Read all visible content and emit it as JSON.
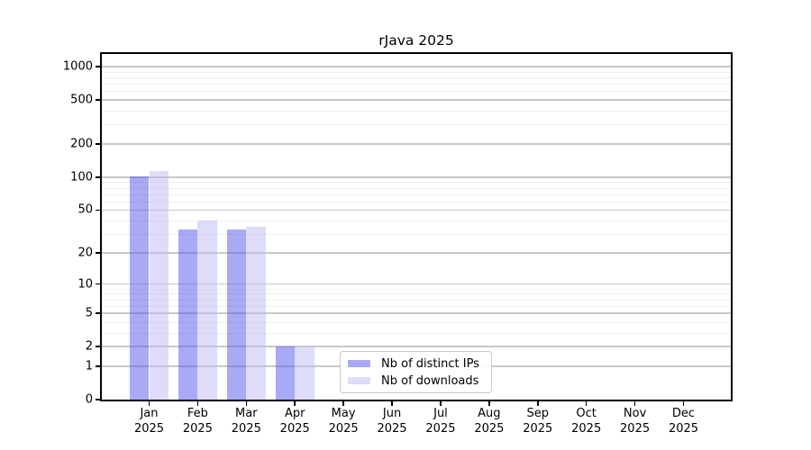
{
  "chart_data": {
    "type": "bar",
    "title": "rJava 2025",
    "categories": [
      "Jan",
      "Feb",
      "Mar",
      "Apr",
      "May",
      "Jun",
      "Jul",
      "Aug",
      "Sep",
      "Oct",
      "Nov",
      "Dec"
    ],
    "x_year": "2025",
    "series": [
      {
        "key": "ips",
        "name": "Nb of distinct IPs",
        "color": "rgba(84,84,238,0.5)",
        "values": [
          101,
          33,
          33,
          2,
          0,
          0,
          0,
          0,
          0,
          0,
          0,
          0
        ]
      },
      {
        "key": "downloads",
        "name": "Nb of downloads",
        "color": "rgba(188,188,243,0.5)",
        "values": [
          114,
          40,
          35,
          2,
          0,
          0,
          0,
          0,
          0,
          0,
          0,
          0
        ]
      }
    ],
    "y_axis": {
      "scale": "log1p",
      "max": 1000,
      "ylim": [
        0,
        1000
      ],
      "ticks": [
        1000,
        500,
        200,
        100,
        50,
        20,
        10,
        5,
        2,
        1,
        0
      ],
      "minor_ticks": [
        3,
        4,
        6,
        7,
        8,
        9,
        30,
        40,
        60,
        70,
        80,
        90,
        300,
        400,
        600,
        700,
        800,
        900
      ]
    },
    "grid": "both",
    "legend_position": "lower-center-inside"
  }
}
